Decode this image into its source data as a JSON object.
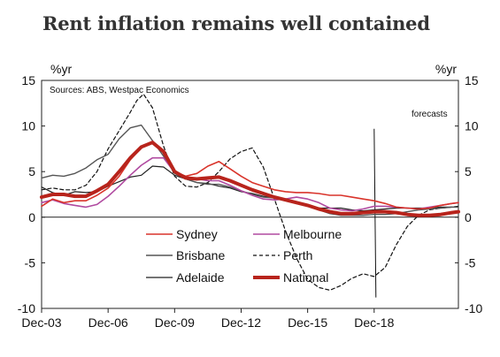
{
  "chart_data": {
    "type": "line",
    "title": "Rent inflation remains well contained",
    "ylabel_left": "%yr",
    "ylabel_right": "%yr",
    "source": "Sources: ABS, Westpac Economics",
    "annotation": "forecasts",
    "ylim": [
      -10,
      15
    ],
    "yticks": [
      -10,
      -5,
      0,
      5,
      10,
      15
    ],
    "xlim": [
      2003.0,
      2021.8
    ],
    "xticks": [
      {
        "label": "Dec-03",
        "value": 2003.0
      },
      {
        "label": "Dec-06",
        "value": 2006.0
      },
      {
        "label": "Dec-09",
        "value": 2009.0
      },
      {
        "label": "Dec-12",
        "value": 2012.0
      },
      {
        "label": "Dec-15",
        "value": 2015.0
      },
      {
        "label": "Dec-18",
        "value": 2018.0
      }
    ],
    "forecast_start": 2018.0,
    "grid": false,
    "legend": [
      {
        "name": "Sydney",
        "color": "#d9342b",
        "style": "solid",
        "width": 1.6
      },
      {
        "name": "Melbourne",
        "color": "#b04aa0",
        "style": "solid",
        "width": 1.6
      },
      {
        "name": "Brisbane",
        "color": "#555555",
        "style": "solid",
        "width": 1.4
      },
      {
        "name": "Perth",
        "color": "#111111",
        "style": "dashed",
        "width": 1.2
      },
      {
        "name": "Adelaide",
        "color": "#222222",
        "style": "solid",
        "width": 1.2
      },
      {
        "name": "National",
        "color": "#b8241c",
        "style": "solid",
        "width": 4
      }
    ],
    "series": [
      {
        "name": "Sydney",
        "x": [
          2003.0,
          2003.5,
          2004.0,
          2004.5,
          2005.0,
          2005.5,
          2006.0,
          2006.5,
          2007.0,
          2007.5,
          2008.0,
          2008.5,
          2009.0,
          2009.5,
          2010.0,
          2010.5,
          2011.0,
          2011.5,
          2012.0,
          2012.5,
          2013.0,
          2013.5,
          2014.0,
          2014.5,
          2015.0,
          2015.5,
          2016.0,
          2016.5,
          2017.0,
          2017.5,
          2018.0,
          2018.5,
          2019.0,
          2019.5,
          2020.0,
          2020.5,
          2021.0,
          2021.5,
          2021.8
        ],
        "y": [
          1.2,
          2.0,
          1.6,
          1.8,
          1.8,
          2.4,
          3.2,
          4.5,
          6.3,
          7.6,
          8.3,
          7.3,
          5.0,
          4.5,
          4.8,
          5.6,
          6.1,
          5.3,
          4.5,
          3.8,
          3.4,
          3.0,
          2.8,
          2.7,
          2.7,
          2.6,
          2.4,
          2.4,
          2.2,
          2.0,
          1.8,
          1.5,
          1.1,
          1.0,
          0.9,
          1.0,
          1.3,
          1.5,
          1.6
        ]
      },
      {
        "name": "Melbourne",
        "x": [
          2003.0,
          2003.5,
          2004.0,
          2004.5,
          2005.0,
          2005.5,
          2006.0,
          2006.5,
          2007.0,
          2007.5,
          2008.0,
          2008.5,
          2009.0,
          2009.5,
          2010.0,
          2010.5,
          2011.0,
          2011.5,
          2012.0,
          2012.5,
          2013.0,
          2013.5,
          2014.0,
          2014.5,
          2015.0,
          2015.5,
          2016.0,
          2016.5,
          2017.0,
          2017.5,
          2018.0,
          2018.5,
          2019.0,
          2019.5,
          2020.0,
          2020.5,
          2021.0,
          2021.5,
          2021.8
        ],
        "y": [
          1.6,
          1.9,
          1.5,
          1.3,
          1.1,
          1.4,
          2.3,
          3.4,
          4.6,
          5.7,
          6.5,
          6.5,
          4.9,
          4.4,
          4.2,
          4.0,
          4.0,
          3.5,
          2.9,
          2.4,
          2.0,
          1.9,
          2.0,
          2.2,
          2.0,
          1.6,
          1.0,
          0.8,
          0.7,
          0.9,
          1.2,
          1.2,
          1.1,
          1.0,
          0.9,
          1.1,
          1.3,
          1.5,
          1.6
        ]
      },
      {
        "name": "Brisbane",
        "x": [
          2003.0,
          2003.5,
          2004.0,
          2004.5,
          2005.0,
          2005.5,
          2006.0,
          2006.5,
          2007.0,
          2007.5,
          2008.0,
          2008.5,
          2009.0,
          2009.5,
          2010.0,
          2010.5,
          2011.0,
          2011.5,
          2012.0,
          2012.5,
          2013.0,
          2013.5,
          2014.0,
          2014.5,
          2015.0,
          2015.5,
          2016.0,
          2016.5,
          2017.0,
          2017.5,
          2018.0,
          2018.5,
          2019.0,
          2019.5,
          2020.0,
          2020.5,
          2021.0,
          2021.5,
          2021.8
        ],
        "y": [
          4.3,
          4.6,
          4.5,
          4.8,
          5.4,
          6.3,
          6.9,
          8.6,
          9.8,
          10.1,
          8.4,
          6.7,
          4.8,
          4.2,
          3.8,
          3.6,
          3.6,
          3.3,
          2.9,
          2.5,
          2.2,
          2.1,
          2.0,
          1.6,
          1.2,
          0.8,
          0.4,
          0.2,
          0.2,
          0.2,
          0.3,
          0.3,
          0.4,
          0.6,
          0.8,
          0.9,
          1.0,
          1.1,
          1.1
        ]
      },
      {
        "name": "Perth",
        "x": [
          2003.0,
          2003.5,
          2004.0,
          2004.5,
          2005.0,
          2005.5,
          2006.0,
          2006.5,
          2007.0,
          2007.3,
          2007.6,
          2008.0,
          2008.5,
          2009.0,
          2009.5,
          2010.0,
          2010.5,
          2011.0,
          2011.5,
          2012.0,
          2012.5,
          2013.0,
          2013.5,
          2014.0,
          2014.5,
          2015.0,
          2015.5,
          2016.0,
          2016.5,
          2017.0,
          2017.5,
          2018.0,
          2018.5,
          2019.0,
          2019.5,
          2020.0,
          2020.5,
          2021.0,
          2021.5,
          2021.8
        ],
        "y": [
          3.0,
          3.2,
          3.0,
          3.0,
          3.5,
          5.0,
          7.5,
          9.5,
          11.5,
          12.8,
          13.5,
          12.0,
          7.8,
          4.5,
          3.4,
          3.3,
          3.8,
          5.0,
          6.4,
          7.2,
          7.6,
          5.5,
          2.0,
          -1.5,
          -4.5,
          -6.8,
          -7.7,
          -8.0,
          -7.5,
          -6.7,
          -6.2,
          -6.5,
          -5.5,
          -3.0,
          -1.0,
          0.2,
          0.8,
          1.0,
          1.1,
          1.2
        ]
      },
      {
        "name": "Adelaide",
        "x": [
          2003.0,
          2003.5,
          2004.0,
          2004.5,
          2005.0,
          2005.5,
          2006.0,
          2006.5,
          2007.0,
          2007.5,
          2008.0,
          2008.5,
          2009.0,
          2009.5,
          2010.0,
          2010.5,
          2011.0,
          2011.5,
          2012.0,
          2012.5,
          2013.0,
          2013.5,
          2014.0,
          2014.5,
          2015.0,
          2015.5,
          2016.0,
          2016.5,
          2017.0,
          2017.5,
          2018.0,
          2018.5,
          2019.0,
          2019.5,
          2020.0,
          2020.5,
          2021.0,
          2021.5,
          2021.8
        ],
        "y": [
          3.3,
          2.7,
          2.4,
          2.8,
          2.7,
          2.8,
          3.4,
          3.9,
          4.4,
          4.6,
          5.6,
          5.5,
          4.6,
          4.2,
          3.8,
          3.7,
          3.4,
          3.2,
          2.8,
          2.6,
          2.3,
          2.1,
          2.0,
          1.5,
          1.2,
          1.0,
          1.0,
          1.0,
          0.8,
          0.7,
          0.8,
          0.9,
          1.0,
          1.0,
          1.0,
          1.0,
          1.1,
          1.1,
          1.1
        ]
      },
      {
        "name": "National",
        "x": [
          2003.0,
          2003.5,
          2004.0,
          2004.5,
          2005.0,
          2005.5,
          2006.0,
          2006.5,
          2007.0,
          2007.5,
          2008.0,
          2008.5,
          2009.0,
          2009.5,
          2010.0,
          2010.5,
          2011.0,
          2011.5,
          2012.0,
          2012.5,
          2013.0,
          2013.5,
          2014.0,
          2014.5,
          2015.0,
          2015.5,
          2016.0,
          2016.5,
          2017.0,
          2017.5,
          2018.0,
          2018.5,
          2019.0,
          2019.5,
          2020.0,
          2020.5,
          2021.0,
          2021.5,
          2021.8
        ],
        "y": [
          2.2,
          2.5,
          2.5,
          2.3,
          2.3,
          2.9,
          3.6,
          5.0,
          6.5,
          7.7,
          8.2,
          7.2,
          5.0,
          4.3,
          4.2,
          4.3,
          4.4,
          4.0,
          3.5,
          3.0,
          2.6,
          2.2,
          1.9,
          1.6,
          1.3,
          0.9,
          0.6,
          0.4,
          0.4,
          0.5,
          0.6,
          0.6,
          0.5,
          0.3,
          0.2,
          0.2,
          0.3,
          0.5,
          0.6
        ]
      }
    ]
  }
}
